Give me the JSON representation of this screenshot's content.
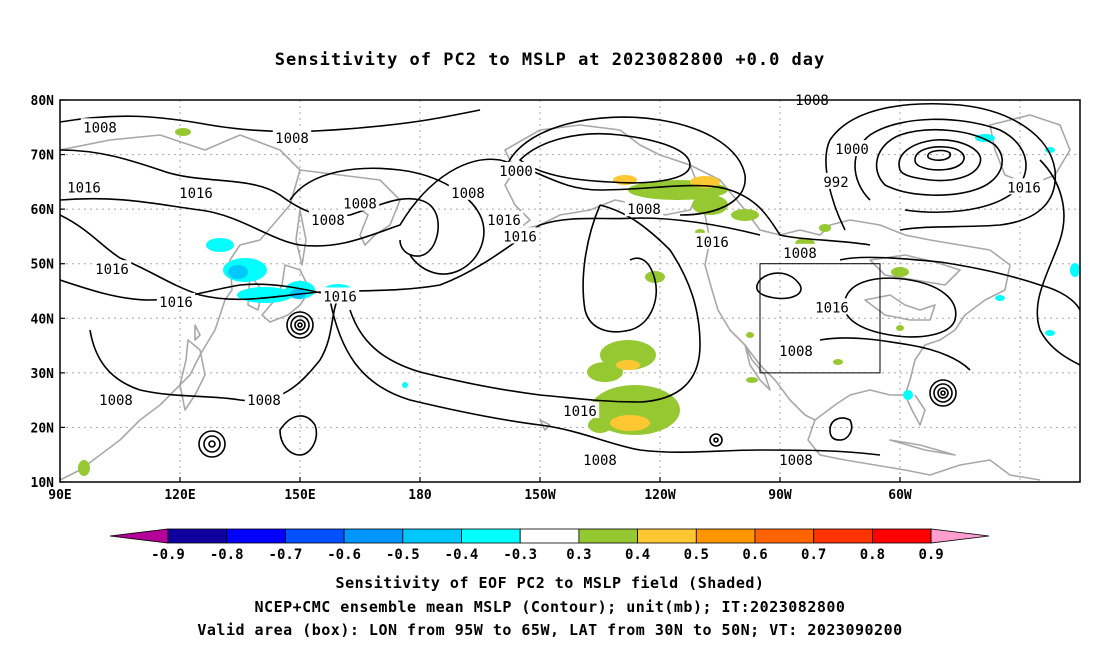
{
  "title": "Sensitivity of PC2 to MSLP at 2023082800 +0.0 day",
  "lat_labels": [
    "80N",
    "70N",
    "60N",
    "50N",
    "40N",
    "30N",
    "20N",
    "10N"
  ],
  "lon_labels": [
    "90E",
    "120E",
    "150E",
    "180",
    "150W",
    "120W",
    "90W",
    "60W"
  ],
  "contour_labels": [
    {
      "text": "1008",
      "lon": 100,
      "lat": 75
    },
    {
      "text": "1008",
      "lon": 148,
      "lat": 73
    },
    {
      "text": "1016",
      "lon": 96,
      "lat": 64
    },
    {
      "text": "1016",
      "lon": 124,
      "lat": 63
    },
    {
      "text": "1008",
      "lon": 157,
      "lat": 58
    },
    {
      "text": "1008",
      "lon": 165,
      "lat": 61
    },
    {
      "text": "1000",
      "lon": 204,
      "lat": 67
    },
    {
      "text": "1008",
      "lon": 192,
      "lat": 63
    },
    {
      "text": "1016",
      "lon": 201,
      "lat": 58
    },
    {
      "text": "1016",
      "lon": 205,
      "lat": 55
    },
    {
      "text": "1008",
      "lon": 236,
      "lat": 60
    },
    {
      "text": "1016",
      "lon": 253,
      "lat": 54
    },
    {
      "text": "1008",
      "lon": 278,
      "lat": 80
    },
    {
      "text": "1000",
      "lon": 288,
      "lat": 71
    },
    {
      "text": "992",
      "lon": 284,
      "lat": 65
    },
    {
      "text": "1008",
      "lon": 275,
      "lat": 52
    },
    {
      "text": "1016",
      "lon": 331,
      "lat": 64
    },
    {
      "text": "1016",
      "lon": 103,
      "lat": 49
    },
    {
      "text": "1016",
      "lon": 119,
      "lat": 43
    },
    {
      "text": "1016",
      "lon": 160,
      "lat": 44
    },
    {
      "text": "1016",
      "lon": 283,
      "lat": 42
    },
    {
      "text": "1008",
      "lon": 274,
      "lat": 34
    },
    {
      "text": "1008",
      "lon": 104,
      "lat": 25
    },
    {
      "text": "1008",
      "lon": 141,
      "lat": 25
    },
    {
      "text": "1016",
      "lon": 220,
      "lat": 23
    },
    {
      "text": "1008",
      "lon": 225,
      "lat": 14
    },
    {
      "text": "1008",
      "lon": 274,
      "lat": 14
    }
  ],
  "valid_box": {
    "lon_min": -95,
    "lon_max": -65,
    "lat_min": 30,
    "lat_max": 50
  },
  "colorbar": {
    "colors": [
      "#b40098",
      "#1000a0",
      "#0000ff",
      "#0050ff",
      "#0096ff",
      "#00c8ff",
      "#00ffff",
      "#ffffff",
      "#96c832",
      "#ffc832",
      "#ff9600",
      "#ff6400",
      "#ff3200",
      "#ff0000",
      "#ff9ecf"
    ],
    "labels": [
      "-0.9",
      "-0.8",
      "-0.7",
      "-0.6",
      "-0.5",
      "-0.4",
      "-0.3",
      "0.3",
      "0.4",
      "0.5",
      "0.6",
      "0.7",
      "0.8",
      "0.9"
    ]
  },
  "captions": [
    "Sensitivity of EOF PC2 to MSLP field (Shaded)",
    "NCEP+CMC ensemble mean MSLP (Contour); unit(mb); IT:2023082800",
    "Valid area (box): LON from 95W to 65W, LAT from 30N to 50N; VT: 2023090200"
  ],
  "colors": {
    "contour": "#000000",
    "coast": "#a8a8a8",
    "grid": "#a8a8a8",
    "shade_green": "#96c832",
    "shade_yellow": "#ffc832",
    "shade_cyan": "#00ffff",
    "shade_lightblue": "#00c8ff"
  }
}
